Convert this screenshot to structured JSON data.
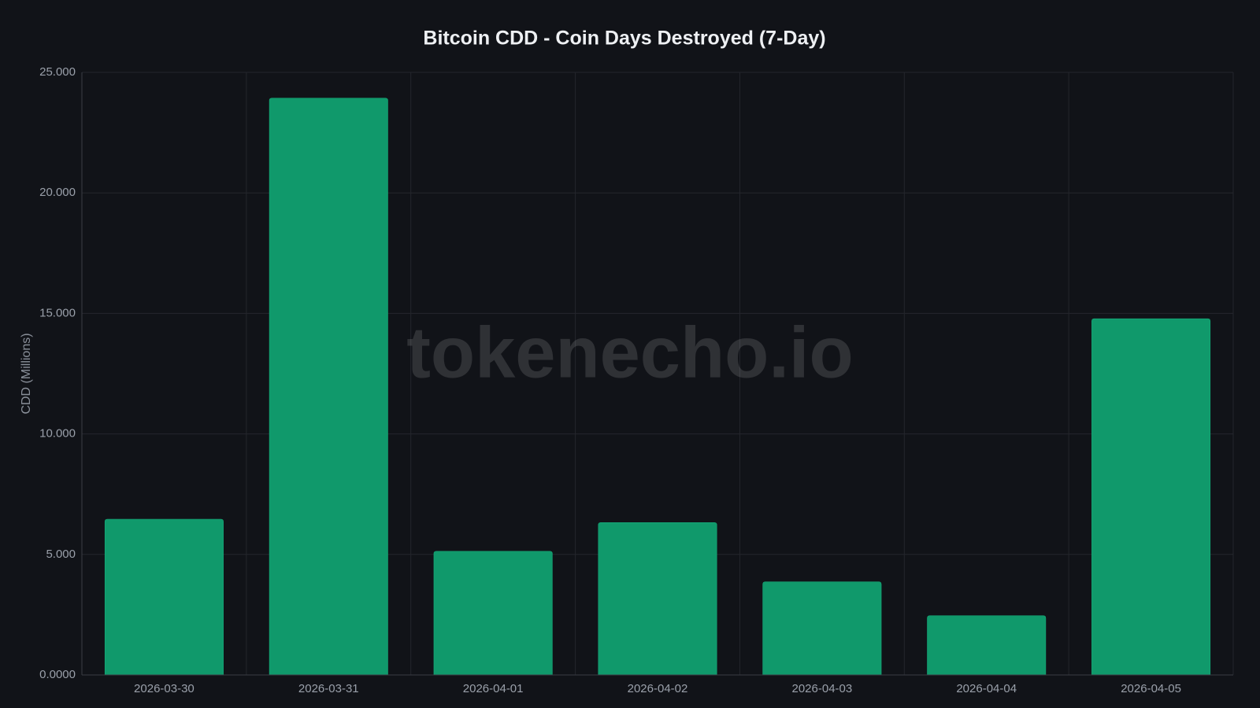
{
  "chart_data": {
    "type": "bar",
    "title": "Bitcoin CDD - Coin Days Destroyed (7-Day)",
    "y_label": "CDD (Millions)",
    "watermark": "tokenecho.io",
    "categories": [
      "2026-03-30",
      "2026-03-31",
      "2026-04-01",
      "2026-04-02",
      "2026-04-03",
      "2026-04-04",
      "2026-04-05"
    ],
    "values": [
      6.46,
      23.93,
      5.13,
      6.32,
      3.86,
      2.46,
      14.78
    ],
    "color": "#10996b",
    "ylim": [
      0,
      25
    ],
    "yticks": [
      {
        "value": 0,
        "label": "0.0000"
      },
      {
        "value": 5,
        "label": "5.000"
      },
      {
        "value": 10,
        "label": "10.000"
      },
      {
        "value": 15,
        "label": "15.000"
      },
      {
        "value": 20,
        "label": "20.000"
      },
      {
        "value": 25,
        "label": "25.000"
      }
    ],
    "grid": true
  }
}
